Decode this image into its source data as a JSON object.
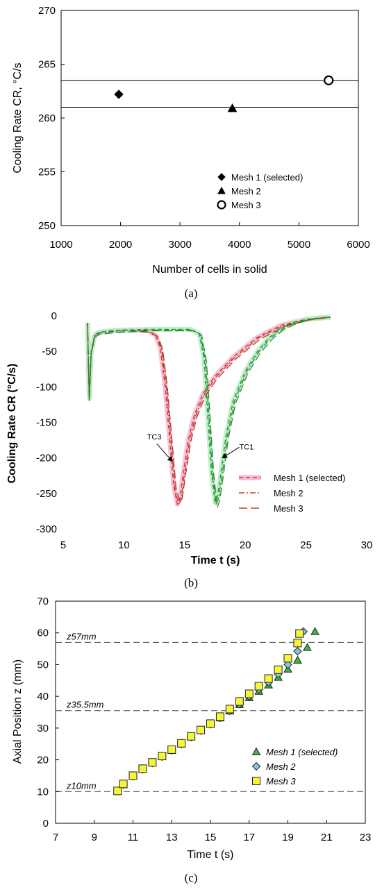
{
  "chart_data": [
    {
      "type": "scatter",
      "panel_label": "(a)",
      "xlabel": "Number of cells in solid",
      "ylabel": "Cooling Rate  CR,  °C/s",
      "xlim": [
        1000,
        6000
      ],
      "ylim": [
        250,
        270
      ],
      "xticks": [
        1000,
        2000,
        3000,
        4000,
        5000,
        6000
      ],
      "yticks": [
        250,
        255,
        260,
        265,
        270
      ],
      "hlines": [
        263.5,
        261.0
      ],
      "legend_position": "lower-right",
      "series": [
        {
          "name": "Mesh 1 (selected)",
          "marker": "diamond",
          "color": "#000000",
          "x": [
            1970
          ],
          "y": [
            262.2
          ]
        },
        {
          "name": "Mesh 2",
          "marker": "triangle",
          "color": "#000000",
          "x": [
            3880
          ],
          "y": [
            260.9
          ]
        },
        {
          "name": "Mesh 3",
          "marker": "circle-open",
          "color": "#000000",
          "x": [
            5500
          ],
          "y": [
            263.5
          ]
        }
      ]
    },
    {
      "type": "line",
      "panel_label": "(b)",
      "xlabel": "Time  t (s)",
      "ylabel": "Cooling Rate  CR (°C/s)",
      "xlim": [
        5,
        30
      ],
      "ylim": [
        -300,
        0
      ],
      "xticks": [
        5,
        10,
        15,
        20,
        25,
        30
      ],
      "yticks": [
        0,
        -50,
        -100,
        -150,
        -200,
        -250,
        -300
      ],
      "legend_position": "lower-right",
      "annotations": [
        {
          "text": "TC3",
          "x": 12.5,
          "y": -174
        },
        {
          "text": "TC1",
          "x": 20.1,
          "y": -188
        }
      ],
      "series": [
        {
          "name": "Mesh 1 (selected)",
          "style": "dashed-thick-pink",
          "color": "#f29ab8",
          "curves": [
            {
              "color": "#d93a2a",
              "x": [
                7.0,
                7.15,
                7.3,
                7.6,
                8.0,
                9,
                10,
                11,
                12,
                12.6,
                13.0,
                13.4,
                13.8,
                14.1,
                14.4,
                14.6,
                14.9,
                15.3,
                15.8,
                16.5,
                17.5,
                19,
                21,
                23,
                25,
                27
              ],
              "y": [
                -10,
                -115,
                -50,
                -27,
                -23,
                -21,
                -20,
                -20,
                -21,
                -27,
                -45,
                -100,
                -180,
                -240,
                -265,
                -258,
                -220,
                -175,
                -140,
                -110,
                -85,
                -58,
                -30,
                -13,
                -5,
                -2
              ]
            },
            {
              "color": "#2a9a3a",
              "x": [
                7.0,
                7.15,
                7.3,
                7.6,
                8.0,
                9,
                10,
                12,
                14,
                15.5,
                16.2,
                16.6,
                16.9,
                17.2,
                17.5,
                17.7,
                18.0,
                18.4,
                19,
                20,
                21,
                22,
                23,
                24,
                25,
                26,
                27
              ],
              "y": [
                -10,
                -115,
                -50,
                -27,
                -23,
                -21,
                -20,
                -19,
                -19,
                -19,
                -25,
                -60,
                -140,
                -220,
                -262,
                -255,
                -220,
                -170,
                -120,
                -78,
                -50,
                -30,
                -17,
                -9,
                -5,
                -3,
                -2
              ]
            }
          ]
        },
        {
          "name": "Mesh 2",
          "style": "dash-dot",
          "color": "#d93a2a",
          "curves": [
            {
              "color": "#c0392b",
              "x": [
                7.0,
                7.15,
                7.3,
                7.6,
                8.0,
                9,
                10,
                11,
                12,
                12.7,
                13.1,
                13.5,
                13.9,
                14.2,
                14.5,
                14.7,
                15.0,
                15.4,
                15.9,
                16.6,
                17.6,
                19.1,
                21.1,
                23.1,
                25.1,
                27
              ],
              "y": [
                -10,
                -118,
                -52,
                -28,
                -24,
                -22,
                -21,
                -21,
                -22,
                -28,
                -46,
                -102,
                -182,
                -242,
                -266,
                -259,
                -221,
                -176,
                -141,
                -111,
                -86,
                -59,
                -31,
                -14,
                -6,
                -2
              ]
            },
            {
              "color": "#1e8a2e",
              "x": [
                7.0,
                7.15,
                7.3,
                7.6,
                8.0,
                9,
                10,
                12,
                14,
                15.6,
                16.3,
                16.7,
                17.0,
                17.3,
                17.6,
                17.8,
                18.1,
                18.5,
                19.1,
                20.1,
                21.1,
                22.1,
                23.1,
                24.1,
                25.1,
                26.1,
                27
              ],
              "y": [
                -10,
                -118,
                -52,
                -28,
                -24,
                -22,
                -21,
                -20,
                -20,
                -20,
                -26,
                -62,
                -142,
                -222,
                -266,
                -257,
                -222,
                -171,
                -121,
                -79,
                -51,
                -31,
                -18,
                -10,
                -6,
                -3,
                -2
              ]
            }
          ]
        },
        {
          "name": "Mesh 3",
          "style": "long-dash",
          "color": "#c0392b",
          "curves": [
            {
              "color": "#b03020",
              "x": [
                7.0,
                7.15,
                7.3,
                7.6,
                8.0,
                9,
                10,
                11,
                12,
                12.8,
                13.2,
                13.6,
                14.0,
                14.3,
                14.6,
                14.8,
                15.1,
                15.5,
                16.0,
                16.7,
                17.7,
                19.2,
                21.2,
                23.2,
                25.2,
                27
              ],
              "y": [
                -10,
                -120,
                -54,
                -30,
                -26,
                -24,
                -23,
                -22,
                -23,
                -29,
                -48,
                -104,
                -183,
                -243,
                -262,
                -257,
                -222,
                -178,
                -143,
                -113,
                -88,
                -61,
                -33,
                -15,
                -6,
                -2
              ]
            },
            {
              "color": "#2a8a30",
              "x": [
                7.0,
                7.15,
                7.3,
                7.6,
                8.0,
                9,
                10,
                12,
                14,
                15.7,
                16.4,
                16.8,
                17.1,
                17.4,
                17.7,
                17.9,
                18.2,
                18.6,
                19.2,
                20.2,
                21.2,
                22.2,
                23.2,
                24.2,
                25.2,
                26.2,
                27
              ],
              "y": [
                -10,
                -120,
                -54,
                -30,
                -26,
                -24,
                -23,
                -21,
                -21,
                -21,
                -27,
                -64,
                -144,
                -224,
                -270,
                -259,
                -224,
                -173,
                -123,
                -81,
                -53,
                -33,
                -19,
                -11,
                -6,
                -3,
                -2
              ]
            }
          ]
        }
      ]
    },
    {
      "type": "scatter",
      "panel_label": "(c)",
      "xlabel": "Time  t (s)",
      "ylabel": "Axial Position  z (mm)",
      "xlim": [
        7,
        23
      ],
      "ylim": [
        0,
        70
      ],
      "xticks": [
        7,
        9,
        11,
        13,
        15,
        17,
        19,
        21,
        23
      ],
      "yticks": [
        0,
        10,
        20,
        30,
        40,
        50,
        60,
        70
      ],
      "hlines": [
        {
          "y": 57,
          "label": "z57mm"
        },
        {
          "y": 35.5,
          "label": "z35.5mm"
        },
        {
          "y": 10,
          "label": "z10mm"
        }
      ],
      "legend_position": "lower-right",
      "series": [
        {
          "name": "Mesh 1 (selected)",
          "marker": "triangle",
          "color": "#3cb93c",
          "x": [
            10.2,
            10.5,
            11.0,
            11.5,
            12.0,
            12.5,
            13.0,
            13.5,
            14.0,
            14.5,
            15.0,
            15.5,
            16.0,
            16.5,
            17.0,
            17.5,
            18.0,
            18.5,
            19.0,
            19.5,
            20.0,
            20.4
          ],
          "y": [
            10.2,
            12.2,
            14.8,
            17.0,
            19.0,
            21.0,
            23.0,
            25.0,
            27.2,
            29.2,
            31.2,
            33.2,
            35.4,
            37.4,
            39.6,
            41.6,
            43.6,
            46.0,
            48.6,
            51.4,
            55.4,
            60.4
          ]
        },
        {
          "name": "Mesh 2",
          "marker": "diamond",
          "color": "#7ec8e8",
          "x": [
            10.2,
            10.5,
            11.0,
            11.5,
            12.0,
            12.5,
            13.0,
            13.5,
            14.0,
            14.5,
            15.0,
            15.5,
            16.0,
            16.5,
            17.0,
            17.5,
            18.0,
            18.5,
            19.0,
            19.5,
            19.8
          ],
          "y": [
            10.2,
            12.2,
            14.8,
            17.0,
            19.0,
            21.0,
            23.0,
            25.0,
            27.2,
            29.2,
            31.2,
            33.2,
            35.4,
            37.6,
            40.0,
            42.2,
            44.4,
            47.0,
            50.0,
            54.2,
            60.4
          ]
        },
        {
          "name": "Mesh 3",
          "marker": "square",
          "color": "#f5f53a",
          "x": [
            10.2,
            10.5,
            11.0,
            11.5,
            12.0,
            12.5,
            13.0,
            13.5,
            14.0,
            14.5,
            15.0,
            15.5,
            16.0,
            16.5,
            17.0,
            17.5,
            18.0,
            18.5,
            19.0,
            19.5,
            19.6
          ],
          "y": [
            10.2,
            12.4,
            15.0,
            17.2,
            19.2,
            21.2,
            23.2,
            25.2,
            27.4,
            29.4,
            31.4,
            33.6,
            36.0,
            38.4,
            40.8,
            43.2,
            45.6,
            48.4,
            52.0,
            56.8,
            59.8
          ]
        }
      ]
    }
  ]
}
